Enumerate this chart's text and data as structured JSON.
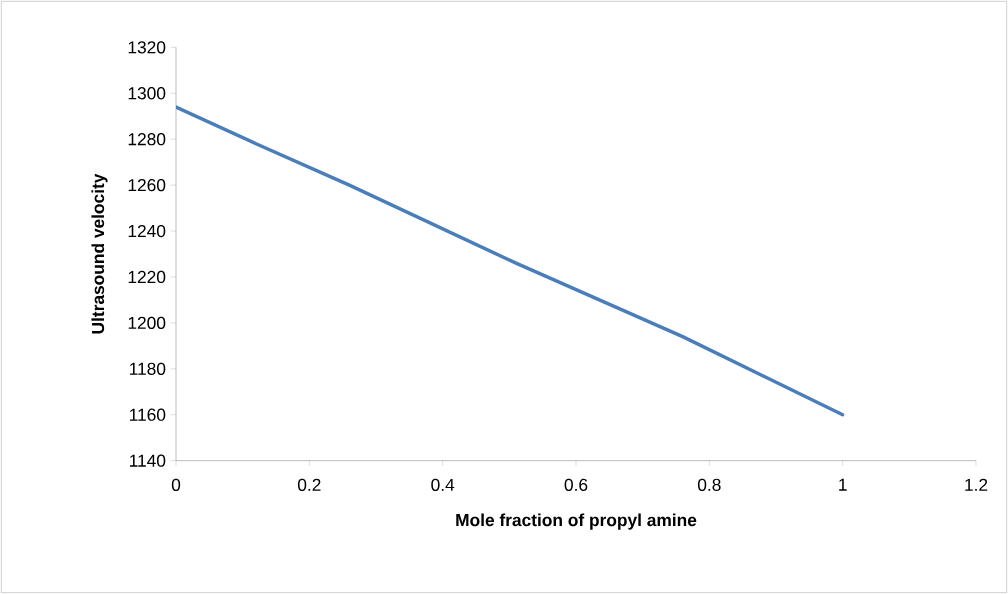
{
  "chart_data": {
    "type": "line",
    "xlabel": "Mole fraction of propyl amine",
    "ylabel": "Ultrasound velocity",
    "x": [
      0,
      0.12,
      0.26,
      0.51,
      0.76,
      1
    ],
    "series": [
      {
        "color": "#4a7ebb",
        "values": [
          1294,
          1278,
          1260,
          1226,
          1194,
          1160
        ]
      }
    ],
    "xlim": [
      0,
      1.2
    ],
    "xticks": [
      0,
      0.2,
      0.4,
      0.6,
      0.8,
      1,
      1.2
    ],
    "ylim": [
      1140,
      1320
    ],
    "yticks": [
      1140,
      1160,
      1180,
      1200,
      1220,
      1240,
      1260,
      1280,
      1300,
      1320
    ],
    "grid": false,
    "marker": "none",
    "line_style": "solid"
  }
}
